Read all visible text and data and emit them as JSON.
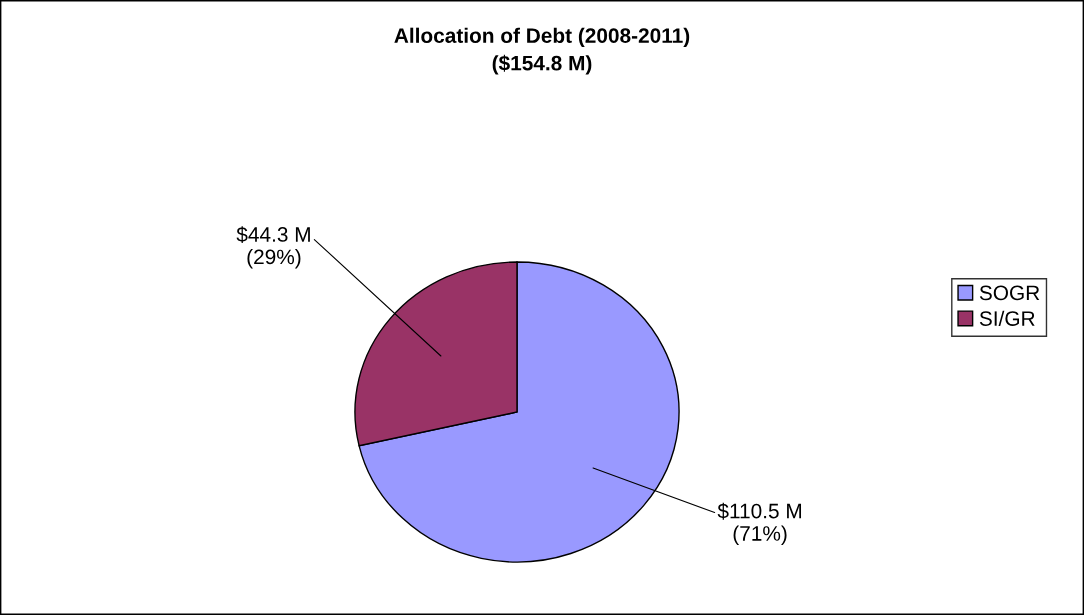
{
  "chart_data": {
    "type": "pie",
    "title": "Allocation of Debt (2008-2011)\n($154.8 M)",
    "categories": [
      "SOGR",
      "SI/GR"
    ],
    "values": [
      110.5,
      44.3
    ],
    "colors": [
      "#9999ff",
      "#993366"
    ],
    "value_labels": [
      "$110.5 M\n(71%)",
      "$44.3 M\n(29%)"
    ],
    "legend": "right"
  }
}
